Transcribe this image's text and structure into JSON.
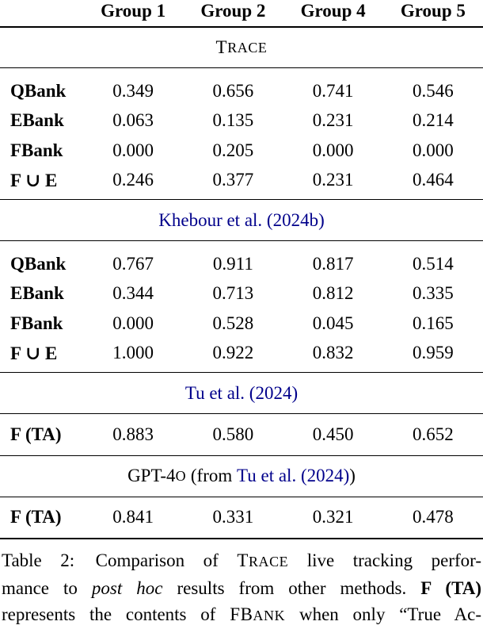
{
  "page": {
    "background": "#ffffff",
    "text_color": "#000000",
    "link_color": "#00008B"
  },
  "table": {
    "column_headers": [
      "Group 1",
      "Group 2",
      "Group 4",
      "Group 5"
    ],
    "sections": [
      {
        "title": {
          "lead": "T",
          "rest": "RACE"
        },
        "rows": [
          {
            "label": "QBank",
            "values": [
              "0.349",
              "0.656",
              "0.741",
              "0.546"
            ]
          },
          {
            "label": "EBank",
            "values": [
              "0.063",
              "0.135",
              "0.231",
              "0.214"
            ]
          },
          {
            "label": "FBank",
            "values": [
              "0.000",
              "0.205",
              "0.000",
              "0.000"
            ]
          },
          {
            "label": "F ∪ E",
            "values": [
              "0.246",
              "0.377",
              "0.231",
              "0.464"
            ]
          }
        ]
      },
      {
        "title": {
          "link": "Khebour et al. (2024b)"
        },
        "rows": [
          {
            "label": "QBank",
            "values": [
              "0.767",
              "0.911",
              "0.817",
              "0.514"
            ]
          },
          {
            "label": "EBank",
            "values": [
              "0.344",
              "0.713",
              "0.812",
              "0.335"
            ]
          },
          {
            "label": "FBank",
            "values": [
              "0.000",
              "0.528",
              "0.045",
              "0.165"
            ]
          },
          {
            "label": "F ∪ E",
            "values": [
              "1.000",
              "0.922",
              "0.832",
              "0.959"
            ]
          }
        ]
      },
      {
        "title": {
          "link": "Tu et al. (2024)"
        },
        "rows": [
          {
            "label": "F (TA)",
            "values": [
              "0.883",
              "0.580",
              "0.450",
              "0.652"
            ]
          }
        ]
      },
      {
        "title": {
          "pre": "GPT-4",
          "sc": "O",
          "mid": " (from ",
          "link": "Tu et al. (2024)",
          "post": ")"
        },
        "rows": [
          {
            "label": "F (TA)",
            "values": [
              "0.841",
              "0.331",
              "0.321",
              "0.478"
            ]
          }
        ]
      }
    ]
  },
  "caption": {
    "label": "Table 2:",
    "line1_pre": " Comparison of ",
    "line1_sc_lead": "T",
    "line1_sc_rest": "RACE",
    "line1_post": " live tracking perfor-",
    "line2_pre": "mance to ",
    "line2_italic": "post hoc",
    "line2_mid": " results from other methods. ",
    "line2_bold": "F (TA)",
    "line3_pre": "represents the contents of ",
    "line3_sc_lead": "FB",
    "line3_sc_rest": "ANK",
    "line3_post": " when only “True Ac-"
  }
}
